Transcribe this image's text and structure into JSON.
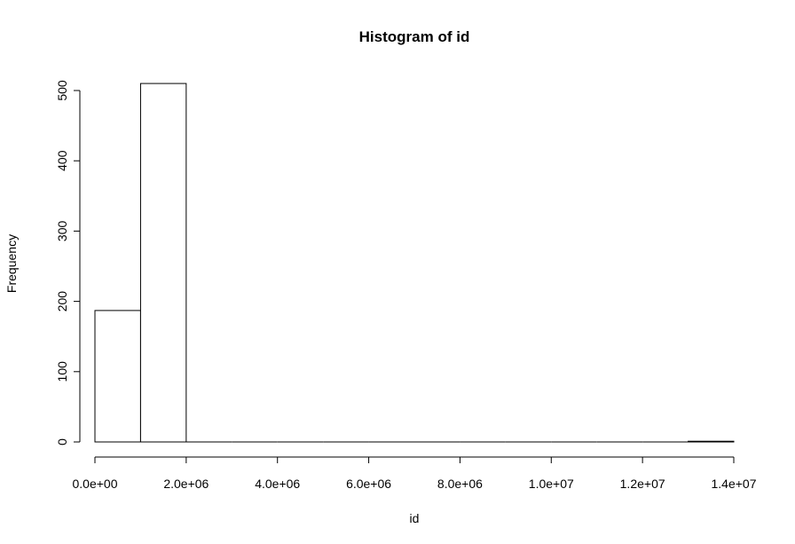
{
  "chart_data": {
    "type": "bar",
    "title": "Histogram of id",
    "xlabel": "id",
    "ylabel": "Frequency",
    "bins": [
      {
        "start": 0,
        "end": 1000000,
        "count": 187
      },
      {
        "start": 1000000,
        "end": 2000000,
        "count": 510
      },
      {
        "start": 2000000,
        "end": 3000000,
        "count": 0
      },
      {
        "start": 3000000,
        "end": 4000000,
        "count": 0
      },
      {
        "start": 4000000,
        "end": 5000000,
        "count": 0
      },
      {
        "start": 5000000,
        "end": 6000000,
        "count": 0
      },
      {
        "start": 6000000,
        "end": 7000000,
        "count": 0
      },
      {
        "start": 7000000,
        "end": 8000000,
        "count": 0
      },
      {
        "start": 8000000,
        "end": 9000000,
        "count": 0
      },
      {
        "start": 9000000,
        "end": 10000000,
        "count": 0
      },
      {
        "start": 10000000,
        "end": 11000000,
        "count": 0
      },
      {
        "start": 11000000,
        "end": 12000000,
        "count": 0
      },
      {
        "start": 12000000,
        "end": 13000000,
        "count": 0
      },
      {
        "start": 13000000,
        "end": 14000000,
        "count": 1
      }
    ],
    "xlim": [
      0,
      14000000
    ],
    "ylim": [
      0,
      510
    ],
    "x_ticks": [
      {
        "value": 0,
        "label": "0.0e+00"
      },
      {
        "value": 2000000,
        "label": "2.0e+06"
      },
      {
        "value": 4000000,
        "label": "4.0e+06"
      },
      {
        "value": 6000000,
        "label": "6.0e+06"
      },
      {
        "value": 8000000,
        "label": "8.0e+06"
      },
      {
        "value": 10000000,
        "label": "1.0e+07"
      },
      {
        "value": 12000000,
        "label": "1.2e+07"
      },
      {
        "value": 14000000,
        "label": "1.4e+07"
      }
    ],
    "y_ticks": [
      {
        "value": 0,
        "label": "0"
      },
      {
        "value": 100,
        "label": "100"
      },
      {
        "value": 200,
        "label": "200"
      },
      {
        "value": 300,
        "label": "300"
      },
      {
        "value": 400,
        "label": "400"
      },
      {
        "value": 500,
        "label": "500"
      }
    ],
    "grid": false,
    "legend": "none",
    "colors": {
      "bar_fill": "#ffffff",
      "bar_stroke": "#000000"
    }
  }
}
